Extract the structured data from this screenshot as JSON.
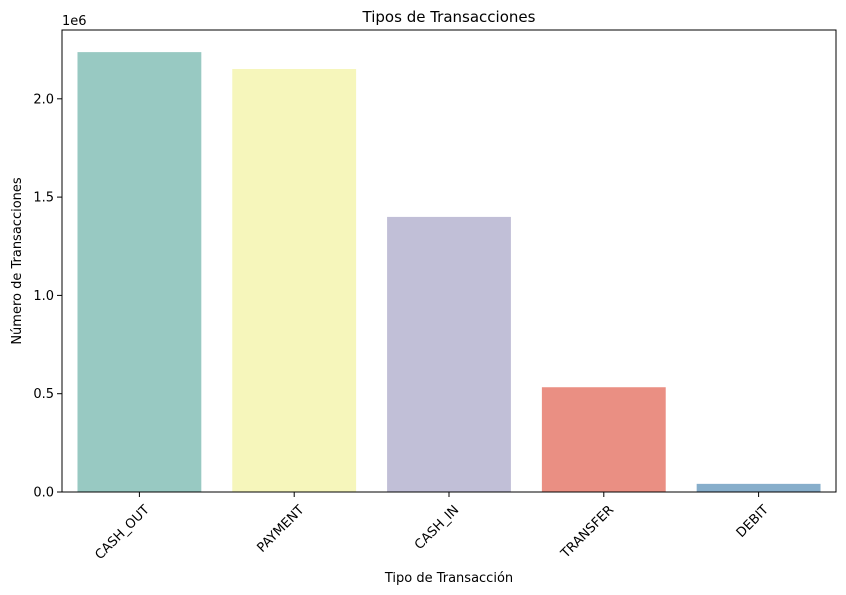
{
  "chart_data": {
    "type": "bar",
    "title": "Tipos de Transacciones",
    "xlabel": "Tipo de Transacción",
    "ylabel": "Número de Transacciones",
    "y_offset_label": "1e6",
    "categories": [
      "CASH_OUT",
      "PAYMENT",
      "CASH_IN",
      "TRANSFER",
      "DEBIT"
    ],
    "values": [
      2237500,
      2151495,
      1399284,
      532909,
      41432
    ],
    "colors": [
      "#98c9c2",
      "#f6f6bb",
      "#c1bfd7",
      "#ea8f83",
      "#87aecb"
    ],
    "ylim": [
      0,
      2350000
    ],
    "yticks": [
      {
        "value": 0,
        "label": "0.0"
      },
      {
        "value": 500000,
        "label": "0.5"
      },
      {
        "value": 1000000,
        "label": "1.0"
      },
      {
        "value": 1500000,
        "label": "1.5"
      },
      {
        "value": 2000000,
        "label": "2.0"
      }
    ],
    "grid": false,
    "legend": "none"
  }
}
